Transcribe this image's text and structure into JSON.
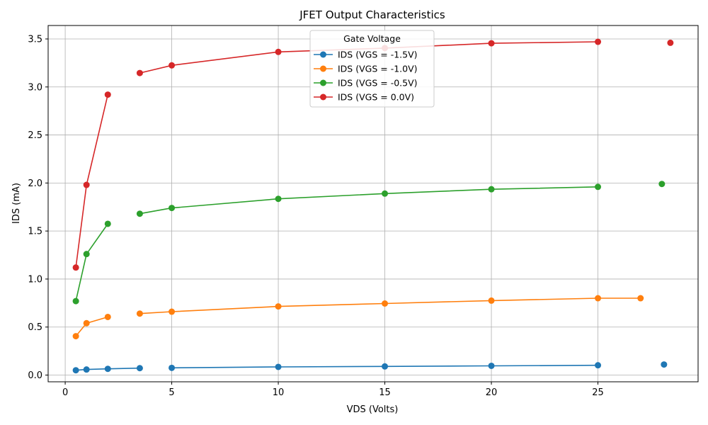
{
  "chart_data": {
    "type": "line",
    "title": "JFET Output Characteristics",
    "xlabel": "VDS (Volts)",
    "ylabel": "IDS (mA)",
    "xlim": [
      -0.8,
      29.7
    ],
    "ylim": [
      -0.07,
      3.64
    ],
    "xticks": [
      0,
      5,
      10,
      15,
      20,
      25
    ],
    "yticks": [
      0.0,
      0.5,
      1.0,
      1.5,
      2.0,
      2.5,
      3.0,
      3.5
    ],
    "grid": true,
    "legend": {
      "title": "Gate Voltage",
      "placement": "upper center"
    },
    "series": [
      {
        "name": "IDS (VGS = -1.5V)",
        "color": "#1f77b4",
        "segments": [
          [
            [
              0.5,
              0.05
            ],
            [
              1,
              0.058
            ],
            [
              2,
              0.065
            ],
            [
              3.5,
              0.072
            ]
          ],
          [
            [
              5,
              0.075
            ],
            [
              10,
              0.085
            ],
            [
              15,
              0.09
            ],
            [
              20,
              0.096
            ],
            [
              25,
              0.102
            ]
          ],
          [
            [
              28.1,
              0.11
            ]
          ]
        ]
      },
      {
        "name": "IDS (VGS = -1.0V)",
        "color": "#ff7f0e",
        "segments": [
          [
            [
              0.5,
              0.405
            ],
            [
              1,
              0.54
            ],
            [
              2,
              0.605
            ]
          ],
          [
            [
              3.5,
              0.64
            ],
            [
              5,
              0.66
            ],
            [
              10,
              0.715
            ],
            [
              15,
              0.745
            ],
            [
              20,
              0.775
            ],
            [
              25,
              0.8
            ],
            [
              27,
              0.8
            ]
          ]
        ]
      },
      {
        "name": "IDS (VGS = -0.5V)",
        "color": "#2ca02c",
        "segments": [
          [
            [
              0.5,
              0.77
            ],
            [
              1,
              1.26
            ],
            [
              2,
              1.575
            ]
          ],
          [
            [
              3.5,
              1.68
            ],
            [
              5,
              1.74
            ],
            [
              10,
              1.835
            ],
            [
              15,
              1.89
            ],
            [
              20,
              1.935
            ],
            [
              25,
              1.96
            ]
          ],
          [
            [
              28,
              1.99
            ]
          ]
        ]
      },
      {
        "name": "IDS (VGS = 0.0V)",
        "color": "#d62728",
        "segments": [
          [
            [
              0.5,
              1.12
            ],
            [
              1,
              1.98
            ],
            [
              2,
              2.92
            ]
          ],
          [
            [
              3.5,
              3.145
            ],
            [
              5,
              3.225
            ],
            [
              10,
              3.365
            ],
            [
              15,
              3.405
            ],
            [
              20,
              3.455
            ],
            [
              25,
              3.47
            ]
          ],
          [
            [
              28.4,
              3.46
            ]
          ]
        ]
      }
    ]
  }
}
